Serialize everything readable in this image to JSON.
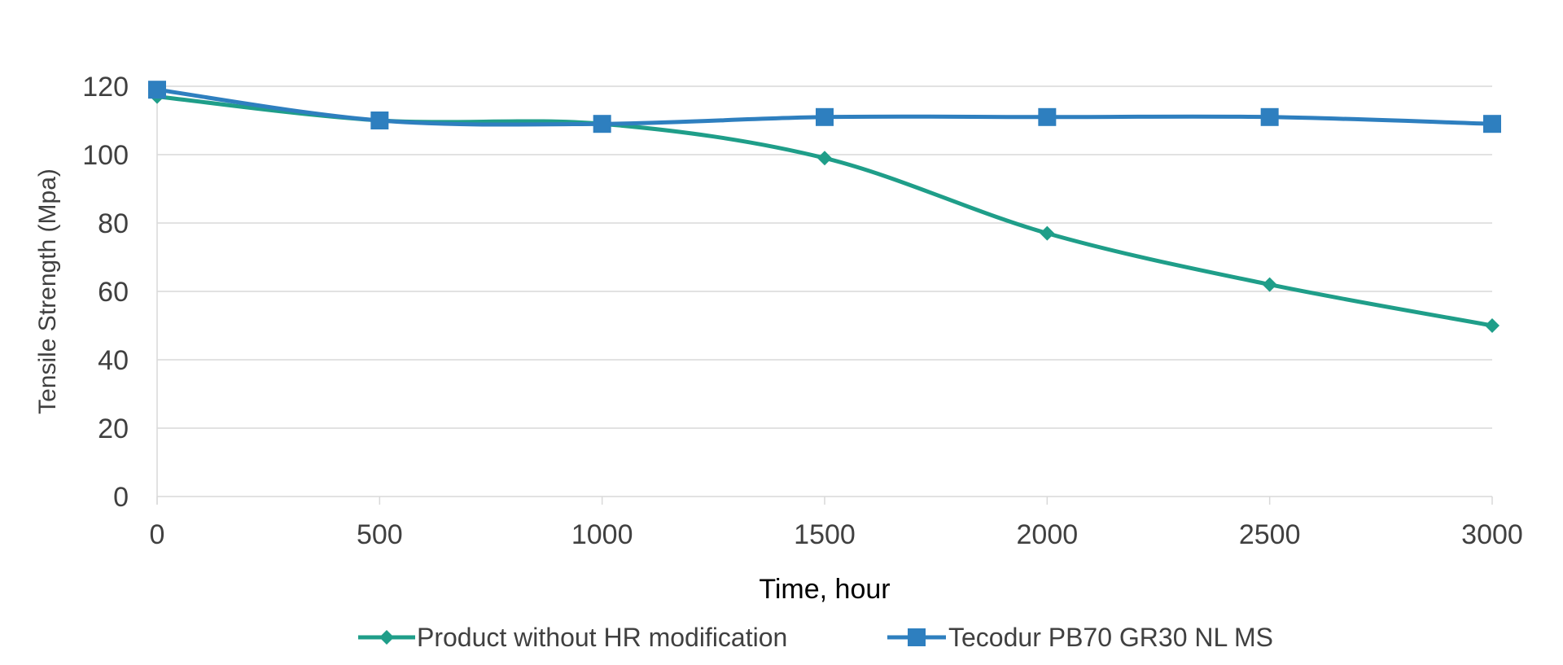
{
  "chart_data": {
    "type": "line",
    "title": "",
    "xlabel": "Time, hour",
    "ylabel": "Tensile Strength (Mpa)",
    "x": [
      0,
      500,
      1000,
      1500,
      2000,
      2500,
      3000
    ],
    "xlim": [
      0,
      3000
    ],
    "ylim": [
      0,
      120
    ],
    "xticks": [
      0,
      500,
      1000,
      1500,
      2000,
      2500,
      3000
    ],
    "yticks": [
      0,
      20,
      40,
      60,
      80,
      100,
      120
    ],
    "grid": "horizontal",
    "legend_position": "bottom",
    "series": [
      {
        "name": "Product without HR modification",
        "color": "#1f9e89",
        "marker": "diamond",
        "values": [
          117,
          110,
          109,
          99,
          77,
          62,
          50
        ]
      },
      {
        "name": "Tecodur PB70 GR30 NL MS",
        "color": "#2e7fbf",
        "marker": "square",
        "values": [
          119,
          110,
          109,
          111,
          111,
          111,
          109
        ]
      }
    ]
  }
}
